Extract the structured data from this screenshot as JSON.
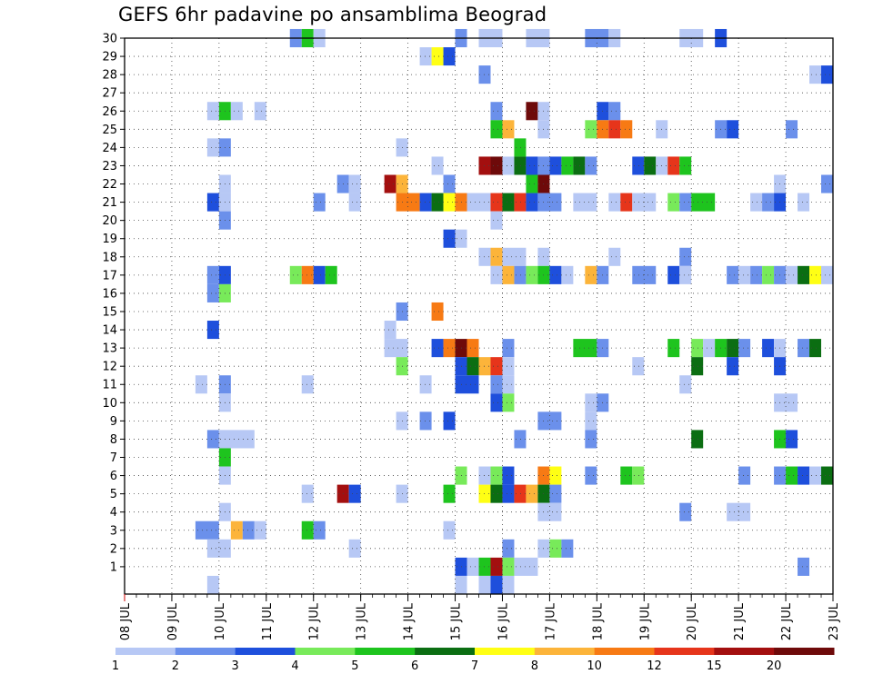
{
  "chart_data": {
    "type": "heatmap",
    "title": "GEFS 6hr padavine po ansamblima Beograd",
    "xlabel": "",
    "ylabel": "",
    "x_ticks": [
      "08 JUL",
      "09 JUL",
      "10 JUL",
      "11 JUL",
      "12 JUL",
      "13 JUL",
      "14 JUL",
      "15 JUL",
      "16 JUL",
      "17 JUL",
      "18 JUL",
      "19 JUL",
      "20 JUL",
      "21 JUL",
      "22 JUL",
      "23 JUL"
    ],
    "y_ticks": [
      1,
      2,
      3,
      4,
      5,
      6,
      7,
      8,
      9,
      10,
      11,
      12,
      13,
      14,
      15,
      16,
      17,
      18,
      19,
      20,
      21,
      22,
      23,
      24,
      25,
      26,
      27,
      28,
      29,
      30
    ],
    "xlim_days": [
      8,
      23
    ],
    "ylim_members": [
      0,
      30
    ],
    "grid": "dotted",
    "legend_placement": "bottom",
    "legend": {
      "thresholds": [
        "1",
        "2",
        "3",
        "4",
        "5",
        "6",
        "7",
        "8",
        "10",
        "12",
        "15",
        "20"
      ],
      "colors": [
        "#b7c8f5",
        "#6b90eb",
        "#1e4fdc",
        "#78ea5a",
        "#1ec41e",
        "#0b6e12",
        "#ffff14",
        "#fcb43a",
        "#f77a14",
        "#e6351b",
        "#a30f0f",
        "#6e0a0a"
      ]
    },
    "cells_note": "each cell: [member, start_day, end_day, class_index(0-11)]",
    "cells": [
      [
        30,
        11.5,
        11.75,
        1
      ],
      [
        30,
        11.75,
        12.0,
        4
      ],
      [
        30,
        12.0,
        12.25,
        0
      ],
      [
        30,
        15.0,
        15.25,
        1
      ],
      [
        30,
        15.5,
        16.0,
        0
      ],
      [
        30,
        16.5,
        17.0,
        0
      ],
      [
        30,
        17.75,
        18.25,
        1
      ],
      [
        30,
        18.25,
        18.5,
        0
      ],
      [
        30,
        19.75,
        20.25,
        0
      ],
      [
        30,
        20.5,
        20.75,
        2
      ],
      [
        29,
        14.25,
        14.5,
        0
      ],
      [
        29,
        14.5,
        14.75,
        6
      ],
      [
        29,
        14.75,
        15.0,
        2
      ],
      [
        28,
        15.5,
        15.75,
        1
      ],
      [
        28,
        22.5,
        22.75,
        0
      ],
      [
        28,
        22.75,
        23.0,
        2
      ],
      [
        26,
        9.75,
        10.0,
        0
      ],
      [
        26,
        10.0,
        10.25,
        4
      ],
      [
        26,
        10.25,
        10.5,
        0
      ],
      [
        26,
        10.75,
        11.0,
        0
      ],
      [
        26,
        15.75,
        16.0,
        1
      ],
      [
        26,
        16.5,
        16.75,
        11
      ],
      [
        26,
        16.75,
        17.0,
        0
      ],
      [
        26,
        18.0,
        18.25,
        2
      ],
      [
        26,
        18.25,
        18.5,
        1
      ],
      [
        25,
        15.75,
        16.0,
        4
      ],
      [
        25,
        16.0,
        16.25,
        7
      ],
      [
        25,
        16.75,
        17.0,
        0
      ],
      [
        25,
        17.75,
        18.0,
        3
      ],
      [
        25,
        18.0,
        18.25,
        8
      ],
      [
        25,
        18.25,
        18.5,
        9
      ],
      [
        25,
        18.5,
        18.75,
        8
      ],
      [
        25,
        19.25,
        19.5,
        0
      ],
      [
        25,
        20.5,
        20.75,
        1
      ],
      [
        25,
        20.75,
        21.0,
        2
      ],
      [
        25,
        22.0,
        22.25,
        1
      ],
      [
        24,
        9.75,
        10.0,
        0
      ],
      [
        24,
        10.0,
        10.25,
        1
      ],
      [
        24,
        13.75,
        14.0,
        0
      ],
      [
        24,
        16.25,
        16.5,
        4
      ],
      [
        23,
        14.5,
        14.75,
        0
      ],
      [
        23,
        15.5,
        15.75,
        10
      ],
      [
        23,
        15.75,
        16.0,
        11
      ],
      [
        23,
        16.0,
        16.25,
        0
      ],
      [
        23,
        16.25,
        16.5,
        5
      ],
      [
        23,
        16.5,
        16.75,
        2
      ],
      [
        23,
        16.75,
        17.0,
        1
      ],
      [
        23,
        17.0,
        17.25,
        2
      ],
      [
        23,
        17.25,
        17.5,
        4
      ],
      [
        23,
        17.5,
        17.75,
        5
      ],
      [
        23,
        17.75,
        18.0,
        1
      ],
      [
        23,
        18.75,
        19.0,
        2
      ],
      [
        23,
        19.0,
        19.25,
        5
      ],
      [
        23,
        19.25,
        19.5,
        0
      ],
      [
        23,
        19.5,
        19.75,
        9
      ],
      [
        23,
        19.75,
        20.0,
        4
      ],
      [
        22,
        10.0,
        10.25,
        0
      ],
      [
        22,
        12.5,
        12.75,
        1
      ],
      [
        22,
        12.75,
        13.0,
        0
      ],
      [
        22,
        13.5,
        13.75,
        10
      ],
      [
        22,
        13.75,
        14.0,
        7
      ],
      [
        22,
        14.75,
        15.0,
        1
      ],
      [
        22,
        16.5,
        16.75,
        4
      ],
      [
        22,
        16.75,
        17.0,
        11
      ],
      [
        22,
        21.75,
        22.0,
        0
      ],
      [
        22,
        22.75,
        23.0,
        1
      ],
      [
        21,
        9.75,
        10.0,
        2
      ],
      [
        21,
        10.0,
        10.25,
        0
      ],
      [
        21,
        12.0,
        12.25,
        1
      ],
      [
        21,
        12.75,
        13.0,
        0
      ],
      [
        21,
        13.75,
        14.25,
        8
      ],
      [
        21,
        14.25,
        14.5,
        2
      ],
      [
        21,
        14.5,
        14.75,
        5
      ],
      [
        21,
        14.75,
        15.0,
        6
      ],
      [
        21,
        15.0,
        15.25,
        8
      ],
      [
        21,
        15.25,
        15.75,
        0
      ],
      [
        21,
        15.75,
        16.0,
        9
      ],
      [
        21,
        16.0,
        16.25,
        5
      ],
      [
        21,
        16.25,
        16.5,
        9
      ],
      [
        21,
        16.5,
        16.75,
        2
      ],
      [
        21,
        16.75,
        17.25,
        1
      ],
      [
        21,
        17.5,
        18.0,
        0
      ],
      [
        21,
        18.25,
        18.5,
        0
      ],
      [
        21,
        18.5,
        18.75,
        9
      ],
      [
        21,
        18.75,
        19.25,
        0
      ],
      [
        21,
        19.5,
        19.75,
        3
      ],
      [
        21,
        19.75,
        20.0,
        1
      ],
      [
        21,
        20.0,
        20.5,
        4
      ],
      [
        21,
        21.25,
        21.5,
        0
      ],
      [
        21,
        21.5,
        21.75,
        1
      ],
      [
        21,
        21.75,
        22.0,
        2
      ],
      [
        21,
        22.25,
        22.5,
        0
      ],
      [
        20,
        10.0,
        10.25,
        1
      ],
      [
        20,
        15.75,
        16.0,
        0
      ],
      [
        19,
        14.75,
        15.0,
        2
      ],
      [
        19,
        15.0,
        15.25,
        0
      ],
      [
        18,
        15.5,
        15.75,
        0
      ],
      [
        18,
        15.75,
        16.0,
        7
      ],
      [
        18,
        16.0,
        16.5,
        0
      ],
      [
        18,
        16.75,
        17.0,
        0
      ],
      [
        18,
        18.25,
        18.5,
        0
      ],
      [
        18,
        19.75,
        20.0,
        1
      ],
      [
        17,
        9.75,
        10.0,
        1
      ],
      [
        17,
        10.0,
        10.25,
        2
      ],
      [
        17,
        11.5,
        11.75,
        3
      ],
      [
        17,
        11.75,
        12.0,
        8
      ],
      [
        17,
        12.0,
        12.25,
        2
      ],
      [
        17,
        12.25,
        12.5,
        4
      ],
      [
        17,
        15.75,
        16.0,
        0
      ],
      [
        17,
        16.0,
        16.25,
        7
      ],
      [
        17,
        16.25,
        16.5,
        1
      ],
      [
        17,
        16.5,
        16.75,
        3
      ],
      [
        17,
        16.75,
        17.0,
        4
      ],
      [
        17,
        17.0,
        17.25,
        2
      ],
      [
        17,
        17.25,
        17.5,
        0
      ],
      [
        17,
        17.75,
        18.0,
        7
      ],
      [
        17,
        18.0,
        18.25,
        1
      ],
      [
        17,
        18.75,
        19.25,
        1
      ],
      [
        17,
        19.5,
        19.75,
        2
      ],
      [
        17,
        19.75,
        20.0,
        0
      ],
      [
        17,
        20.75,
        21.0,
        1
      ],
      [
        17,
        21.0,
        21.25,
        0
      ],
      [
        17,
        21.25,
        21.5,
        1
      ],
      [
        17,
        21.5,
        21.75,
        3
      ],
      [
        17,
        21.75,
        22.0,
        1
      ],
      [
        17,
        22.0,
        22.25,
        0
      ],
      [
        17,
        22.25,
        22.5,
        5
      ],
      [
        17,
        22.5,
        22.75,
        6
      ],
      [
        17,
        22.75,
        23.0,
        0
      ],
      [
        16,
        9.75,
        10.0,
        1
      ],
      [
        16,
        10.0,
        10.25,
        3
      ],
      [
        15,
        13.75,
        14.0,
        1
      ],
      [
        15,
        14.5,
        14.75,
        8
      ],
      [
        14,
        9.75,
        10.0,
        2
      ],
      [
        14,
        13.5,
        13.75,
        0
      ],
      [
        13,
        13.5,
        14.0,
        0
      ],
      [
        13,
        14.5,
        14.75,
        2
      ],
      [
        13,
        14.75,
        15.0,
        8
      ],
      [
        13,
        15.0,
        15.25,
        11
      ],
      [
        13,
        15.25,
        15.5,
        8
      ],
      [
        13,
        16.0,
        16.25,
        1
      ],
      [
        13,
        17.5,
        18.0,
        4
      ],
      [
        13,
        18.0,
        18.25,
        1
      ],
      [
        13,
        19.5,
        19.75,
        4
      ],
      [
        13,
        20.0,
        20.25,
        3
      ],
      [
        13,
        20.25,
        20.5,
        0
      ],
      [
        13,
        20.5,
        20.75,
        4
      ],
      [
        13,
        20.75,
        21.0,
        5
      ],
      [
        13,
        21.0,
        21.25,
        1
      ],
      [
        13,
        21.5,
        21.75,
        2
      ],
      [
        13,
        21.75,
        22.0,
        0
      ],
      [
        13,
        22.25,
        22.5,
        1
      ],
      [
        13,
        22.5,
        22.75,
        5
      ],
      [
        12,
        13.75,
        14.0,
        3
      ],
      [
        12,
        15.0,
        15.25,
        2
      ],
      [
        12,
        15.25,
        15.5,
        5
      ],
      [
        12,
        15.5,
        15.75,
        7
      ],
      [
        12,
        15.75,
        16.0,
        9
      ],
      [
        12,
        16.0,
        16.25,
        0
      ],
      [
        12,
        18.75,
        19.0,
        0
      ],
      [
        12,
        20.0,
        20.25,
        5
      ],
      [
        12,
        20.75,
        21.0,
        2
      ],
      [
        12,
        21.75,
        22.0,
        2
      ],
      [
        11,
        9.5,
        9.75,
        0
      ],
      [
        11,
        10.0,
        10.25,
        1
      ],
      [
        11,
        11.75,
        12.0,
        0
      ],
      [
        11,
        14.25,
        14.5,
        0
      ],
      [
        11,
        15.0,
        15.5,
        2
      ],
      [
        11,
        15.75,
        16.0,
        1
      ],
      [
        11,
        16.0,
        16.25,
        0
      ],
      [
        11,
        19.75,
        20.0,
        0
      ],
      [
        10,
        10.0,
        10.25,
        0
      ],
      [
        10,
        15.75,
        16.0,
        2
      ],
      [
        10,
        16.0,
        16.25,
        3
      ],
      [
        10,
        17.75,
        18.0,
        0
      ],
      [
        10,
        18.0,
        18.25,
        1
      ],
      [
        10,
        21.75,
        22.25,
        0
      ],
      [
        9,
        13.75,
        14.0,
        0
      ],
      [
        9,
        14.25,
        14.5,
        1
      ],
      [
        9,
        14.75,
        15.0,
        2
      ],
      [
        9,
        16.75,
        17.25,
        1
      ],
      [
        9,
        17.75,
        18.0,
        0
      ],
      [
        8,
        9.75,
        10.0,
        1
      ],
      [
        8,
        10.0,
        10.75,
        0
      ],
      [
        8,
        16.25,
        16.5,
        1
      ],
      [
        8,
        17.75,
        18.0,
        1
      ],
      [
        8,
        20.0,
        20.25,
        5
      ],
      [
        8,
        21.75,
        22.0,
        4
      ],
      [
        8,
        22.0,
        22.25,
        2
      ],
      [
        7,
        10.0,
        10.25,
        4
      ],
      [
        6,
        10.0,
        10.25,
        0
      ],
      [
        6,
        15.0,
        15.25,
        3
      ],
      [
        6,
        15.5,
        15.75,
        0
      ],
      [
        6,
        15.75,
        16.0,
        3
      ],
      [
        6,
        16.0,
        16.25,
        2
      ],
      [
        6,
        16.75,
        17.0,
        8
      ],
      [
        6,
        17.0,
        17.25,
        6
      ],
      [
        6,
        17.75,
        18.0,
        1
      ],
      [
        6,
        18.5,
        18.75,
        4
      ],
      [
        6,
        18.75,
        19.0,
        3
      ],
      [
        6,
        21.0,
        21.25,
        1
      ],
      [
        6,
        21.75,
        22.0,
        1
      ],
      [
        6,
        22.0,
        22.25,
        4
      ],
      [
        6,
        22.25,
        22.5,
        2
      ],
      [
        6,
        22.5,
        22.75,
        0
      ],
      [
        6,
        22.75,
        23.0,
        5
      ],
      [
        5,
        11.75,
        12.0,
        0
      ],
      [
        5,
        12.5,
        12.75,
        10
      ],
      [
        5,
        12.75,
        13.0,
        2
      ],
      [
        5,
        13.75,
        14.0,
        0
      ],
      [
        5,
        14.75,
        15.0,
        4
      ],
      [
        5,
        15.5,
        15.75,
        6
      ],
      [
        5,
        15.75,
        16.0,
        5
      ],
      [
        5,
        16.0,
        16.25,
        2
      ],
      [
        5,
        16.25,
        16.5,
        9
      ],
      [
        5,
        16.5,
        16.75,
        7
      ],
      [
        5,
        16.75,
        17.0,
        5
      ],
      [
        5,
        17.0,
        17.25,
        1
      ],
      [
        4,
        10.0,
        10.25,
        0
      ],
      [
        4,
        16.75,
        17.25,
        0
      ],
      [
        4,
        19.75,
        20.0,
        1
      ],
      [
        4,
        20.75,
        21.25,
        0
      ],
      [
        3,
        9.5,
        10.0,
        1
      ],
      [
        3,
        10.25,
        10.5,
        7
      ],
      [
        3,
        10.5,
        10.75,
        1
      ],
      [
        3,
        10.75,
        11.0,
        0
      ],
      [
        3,
        11.75,
        12.0,
        4
      ],
      [
        3,
        12.0,
        12.25,
        1
      ],
      [
        3,
        14.75,
        15.0,
        0
      ],
      [
        2,
        9.75,
        10.25,
        0
      ],
      [
        2,
        12.75,
        13.0,
        0
      ],
      [
        2,
        16.0,
        16.25,
        1
      ],
      [
        2,
        16.75,
        17.0,
        0
      ],
      [
        2,
        17.0,
        17.25,
        3
      ],
      [
        2,
        17.25,
        17.5,
        1
      ],
      [
        1,
        15.0,
        15.25,
        2
      ],
      [
        1,
        15.25,
        15.5,
        0
      ],
      [
        1,
        15.5,
        15.75,
        4
      ],
      [
        1,
        15.75,
        16.0,
        10
      ],
      [
        1,
        16.0,
        16.25,
        3
      ],
      [
        1,
        16.25,
        16.75,
        0
      ],
      [
        1,
        22.25,
        22.5,
        1
      ],
      [
        0,
        9.75,
        10.0,
        0
      ],
      [
        0,
        15.0,
        15.25,
        0
      ],
      [
        0,
        15.5,
        15.75,
        0
      ],
      [
        0,
        15.75,
        16.0,
        2
      ],
      [
        0,
        16.0,
        16.25,
        0
      ]
    ]
  }
}
